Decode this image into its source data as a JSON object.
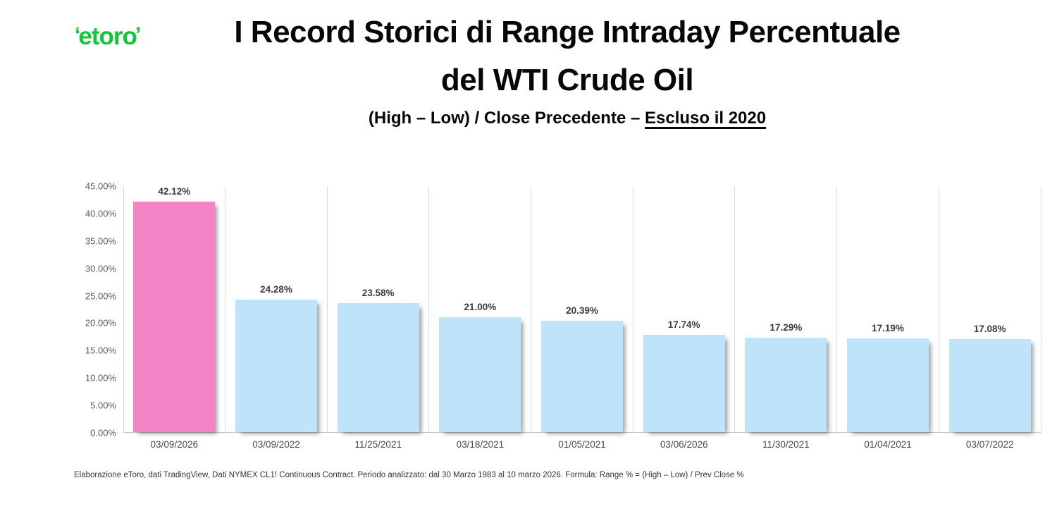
{
  "header": {
    "logo_text": "etoro",
    "logo_horn_left": "‘",
    "logo_horn_right": "’",
    "logo_color": "#13C636",
    "title_line1": "I Record Storici di Range Intraday Percentuale",
    "title_line2": "del WTI Crude Oil",
    "subtitle_prefix": "(High – Low) / Close Precedente – ",
    "subtitle_underlined": "Escluso il 2020"
  },
  "chart_data": {
    "type": "bar",
    "title": "I Record Storici di Range Intraday Percentuale del WTI Crude Oil",
    "subtitle": "(High – Low) / Close Precedente – Escluso il 2020",
    "categories": [
      "03/09/2026",
      "03/09/2022",
      "11/25/2021",
      "03/18/2021",
      "01/05/2021",
      "03/06/2026",
      "11/30/2021",
      "01/04/2021",
      "03/07/2022"
    ],
    "values": [
      42.12,
      24.28,
      23.58,
      21.0,
      20.39,
      17.74,
      17.29,
      17.19,
      17.08
    ],
    "value_labels": [
      "42.12%",
      "24.28%",
      "23.58%",
      "21.00%",
      "20.39%",
      "17.74%",
      "17.29%",
      "17.19%",
      "17.08%"
    ],
    "xlabel": "",
    "ylabel": "",
    "ylim": [
      0,
      45
    ],
    "y_tick_step": 5,
    "y_tick_labels": [
      "0.00%",
      "5.00%",
      "10.00%",
      "15.00%",
      "20.00%",
      "25.00%",
      "30.00%",
      "35.00%",
      "40.00%",
      "45.00%"
    ],
    "grid": "vertical-only",
    "legend": "none",
    "bar_color_default": "#BFE4F9",
    "bar_color_highlight": "#F584C6",
    "highlight_index": 0
  },
  "footer": {
    "note": "Elaborazione eToro, dati TradingView, Dati NYMEX CL1! Continuous Contract. Periodo analizzato: dal 30 Marzo 1983 al 10 marzo 2026. Formula: Range % = (High – Low) / Prev Close %"
  }
}
